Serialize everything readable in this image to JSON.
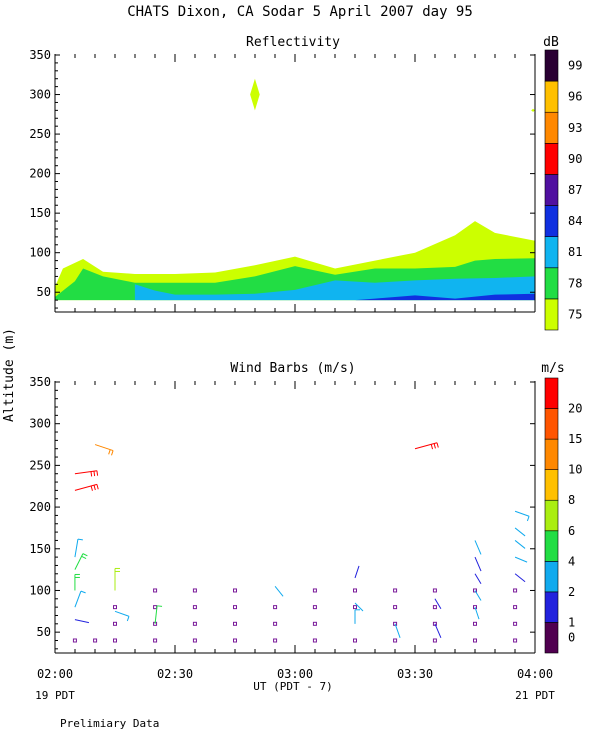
{
  "page": {
    "title": "CHATS Dixon, CA  Sodar    5 April 2007   day  95",
    "footer_note": "Prelimiary Data",
    "y_axis_label": "Altitude (m)",
    "x_axis_label": "UT  (PDT - 7)",
    "x_left_note": "19 PDT",
    "x_right_note": "21 PDT"
  },
  "chart_data": [
    {
      "type": "area",
      "title": "Reflectivity",
      "xlabel": "UT  (PDT - 7)",
      "ylabel": "Altitude (m)",
      "x_ticks": [
        "02:00",
        "02:30",
        "03:00",
        "03:30",
        "04:00"
      ],
      "x_tick_hours": [
        2.0,
        2.5,
        3.0,
        3.5,
        4.0
      ],
      "xlim_hours": [
        2.0,
        4.0
      ],
      "ylim": [
        25,
        350
      ],
      "y_ticks": [
        50,
        100,
        150,
        200,
        250,
        300,
        350
      ],
      "colorbar": {
        "unit": "dB",
        "labels": [
          "75",
          "78",
          "81",
          "84",
          "87",
          "90",
          "93",
          "96",
          "99"
        ],
        "colors": [
          "#ccff00",
          "#22dd44",
          "#10b4f0",
          "#1030e0",
          "#5010a0",
          "#ff0000",
          "#ff8800",
          "#ffc000",
          "#2a0033"
        ]
      },
      "layers": [
        {
          "level_db": 75,
          "color": "#ccff00",
          "x_hours": [
            2.0,
            2.033,
            2.117,
            2.2,
            2.333,
            2.5,
            2.667,
            2.833,
            3.0,
            3.167,
            3.333,
            3.5,
            3.667,
            3.75,
            3.833,
            4.0
          ],
          "top": [
            57,
            80,
            92,
            76,
            73,
            73,
            75,
            84,
            95,
            80,
            90,
            100,
            122,
            140,
            125,
            115
          ],
          "bottom": [
            40,
            40,
            40,
            40,
            40,
            40,
            40,
            40,
            40,
            40,
            40,
            40,
            40,
            40,
            40,
            40
          ]
        },
        {
          "level_db": 78,
          "color": "#22dd44",
          "x_hours": [
            2.0,
            2.083,
            2.117,
            2.2,
            2.333,
            2.5,
            2.667,
            2.833,
            3.0,
            3.167,
            3.333,
            3.5,
            3.667,
            3.75,
            3.833,
            4.0
          ],
          "top": [
            44,
            64,
            80,
            70,
            62,
            62,
            62,
            70,
            83,
            72,
            80,
            80,
            82,
            90,
            92,
            93
          ],
          "bottom": [
            40,
            40,
            40,
            40,
            40,
            40,
            40,
            40,
            40,
            40,
            40,
            40,
            40,
            40,
            40,
            40
          ]
        },
        {
          "level_db": 81,
          "color": "#10b4f0",
          "x_hours": [
            2.333,
            2.417,
            2.5,
            2.667,
            2.833,
            3.0,
            3.167,
            3.333,
            3.5,
            3.667,
            3.833,
            4.0
          ],
          "top": [
            60,
            52,
            47,
            47,
            48,
            53,
            65,
            62,
            65,
            67,
            68,
            70
          ],
          "bottom": [
            40,
            40,
            40,
            40,
            40,
            40,
            40,
            40,
            40,
            40,
            40,
            40
          ]
        },
        {
          "level_db": 84,
          "color": "#1030e0",
          "x_hours": [
            3.25,
            3.333,
            3.5,
            3.667,
            3.833,
            4.0
          ],
          "top": [
            40,
            42,
            46,
            42,
            47,
            48
          ],
          "bottom": [
            40,
            40,
            40,
            40,
            40,
            40
          ]
        }
      ],
      "isolated": [
        {
          "x_hour": 2.833,
          "y": 300,
          "half_width_hours": 0.02,
          "half_height": 20,
          "color": "#ccff00"
        },
        {
          "x_hour": 3.992,
          "y": 280,
          "half_width_hours": 0.008,
          "half_height": 2,
          "color": "#ccff00"
        }
      ]
    },
    {
      "type": "scatter",
      "title": "Wind Barbs (m/s)",
      "xlabel": "UT  (PDT - 7)",
      "ylabel": "Altitude (m)",
      "x_ticks": [
        "02:00",
        "02:30",
        "03:00",
        "03:30",
        "04:00"
      ],
      "x_tick_hours": [
        2.0,
        2.5,
        3.0,
        3.5,
        4.0
      ],
      "xlim_hours": [
        2.0,
        4.0
      ],
      "ylim": [
        25,
        350
      ],
      "y_ticks": [
        50,
        100,
        150,
        200,
        250,
        300,
        350
      ],
      "colorbar": {
        "unit": "m/s",
        "labels": [
          "0",
          "1",
          "2",
          "4",
          "6",
          "8",
          "10",
          "15",
          "20"
        ],
        "colors": [
          "#500050",
          "#2222dd",
          "#11aaee",
          "#22dd44",
          "#aaee11",
          "#ffc000",
          "#ff8800",
          "#ff5500",
          "#ff0000"
        ]
      },
      "calm_points": [
        {
          "x_hour": 2.25,
          "y": 80
        },
        {
          "x_hour": 2.25,
          "y": 60
        },
        {
          "x_hour": 2.25,
          "y": 40
        },
        {
          "x_hour": 2.417,
          "y": 100
        },
        {
          "x_hour": 2.417,
          "y": 80
        },
        {
          "x_hour": 2.417,
          "y": 60
        },
        {
          "x_hour": 2.417,
          "y": 40
        },
        {
          "x_hour": 2.583,
          "y": 100
        },
        {
          "x_hour": 2.583,
          "y": 80
        },
        {
          "x_hour": 2.583,
          "y": 60
        },
        {
          "x_hour": 2.583,
          "y": 40
        },
        {
          "x_hour": 2.75,
          "y": 100
        },
        {
          "x_hour": 2.75,
          "y": 80
        },
        {
          "x_hour": 2.75,
          "y": 60
        },
        {
          "x_hour": 2.75,
          "y": 40
        },
        {
          "x_hour": 2.917,
          "y": 80
        },
        {
          "x_hour": 2.917,
          "y": 60
        },
        {
          "x_hour": 2.917,
          "y": 40
        },
        {
          "x_hour": 3.083,
          "y": 100
        },
        {
          "x_hour": 3.083,
          "y": 80
        },
        {
          "x_hour": 3.083,
          "y": 60
        },
        {
          "x_hour": 3.083,
          "y": 40
        },
        {
          "x_hour": 3.25,
          "y": 100
        },
        {
          "x_hour": 3.25,
          "y": 80
        },
        {
          "x_hour": 3.25,
          "y": 40
        },
        {
          "x_hour": 3.417,
          "y": 100
        },
        {
          "x_hour": 3.417,
          "y": 80
        },
        {
          "x_hour": 3.417,
          "y": 60
        },
        {
          "x_hour": 3.417,
          "y": 40
        },
        {
          "x_hour": 3.583,
          "y": 100
        },
        {
          "x_hour": 3.583,
          "y": 80
        },
        {
          "x_hour": 3.583,
          "y": 60
        },
        {
          "x_hour": 3.75,
          "y": 100
        },
        {
          "x_hour": 3.75,
          "y": 80
        },
        {
          "x_hour": 3.75,
          "y": 60
        },
        {
          "x_hour": 3.75,
          "y": 40
        },
        {
          "x_hour": 3.917,
          "y": 100
        },
        {
          "x_hour": 3.917,
          "y": 80
        },
        {
          "x_hour": 3.917,
          "y": 60
        },
        {
          "x_hour": 3.917,
          "y": 40
        },
        {
          "x_hour": 3.583,
          "y": 40
        },
        {
          "x_hour": 2.083,
          "y": 40
        },
        {
          "x_hour": 2.167,
          "y": 40
        }
      ],
      "barbs": [
        {
          "x_hour": 2.083,
          "y": 140,
          "dx": 3,
          "dy": 18,
          "speed": 3,
          "color": "#11aaee"
        },
        {
          "x_hour": 2.083,
          "y": 125,
          "dx": 8,
          "dy": 16,
          "speed": 5,
          "color": "#22dd44"
        },
        {
          "x_hour": 2.083,
          "y": 100,
          "dx": 0,
          "dy": 16,
          "speed": 5,
          "color": "#22dd44"
        },
        {
          "x_hour": 2.083,
          "y": 80,
          "dx": 6,
          "dy": 16,
          "speed": 3,
          "color": "#11aaee"
        },
        {
          "x_hour": 2.083,
          "y": 65,
          "dx": 14,
          "dy": -3,
          "speed": 1,
          "color": "#2222dd"
        },
        {
          "x_hour": 2.083,
          "y": 240,
          "dx": 22,
          "dy": 3,
          "speed": 20,
          "color": "#ff0000"
        },
        {
          "x_hour": 2.083,
          "y": 220,
          "dx": 22,
          "dy": 6,
          "speed": 20,
          "color": "#ff0000"
        },
        {
          "x_hour": 2.167,
          "y": 275,
          "dx": 18,
          "dy": -6,
          "speed": 9,
          "color": "#ff8800"
        },
        {
          "x_hour": 2.25,
          "y": 100,
          "dx": 0,
          "dy": 22,
          "speed": 6,
          "color": "#aaee11"
        },
        {
          "x_hour": 2.25,
          "y": 75,
          "dx": 14,
          "dy": -5,
          "speed": 3,
          "color": "#11aaee"
        },
        {
          "x_hour": 2.417,
          "y": 60,
          "dx": 2,
          "dy": 18,
          "speed": 4,
          "color": "#22dd44"
        },
        {
          "x_hour": 2.917,
          "y": 105,
          "dx": 8,
          "dy": -10,
          "speed": 2,
          "color": "#11aaee"
        },
        {
          "x_hour": 3.25,
          "y": 115,
          "dx": 4,
          "dy": 12,
          "speed": 1,
          "color": "#2222dd"
        },
        {
          "x_hour": 3.25,
          "y": 85,
          "dx": 8,
          "dy": -8,
          "speed": 2,
          "color": "#11aaee"
        },
        {
          "x_hour": 3.25,
          "y": 60,
          "dx": 0,
          "dy": 14,
          "speed": 3,
          "color": "#11aaee"
        },
        {
          "x_hour": 3.417,
          "y": 60,
          "dx": 5,
          "dy": -14,
          "speed": 2,
          "color": "#11aaee"
        },
        {
          "x_hour": 3.5,
          "y": 270,
          "dx": 22,
          "dy": 6,
          "speed": 20,
          "color": "#ff0000"
        },
        {
          "x_hour": 3.583,
          "y": 90,
          "dx": 6,
          "dy": -10,
          "speed": 1,
          "color": "#2222dd"
        },
        {
          "x_hour": 3.583,
          "y": 60,
          "dx": 6,
          "dy": -14,
          "speed": 1,
          "color": "#2222dd"
        },
        {
          "x_hour": 3.75,
          "y": 160,
          "dx": 6,
          "dy": -14,
          "speed": 2,
          "color": "#11aaee"
        },
        {
          "x_hour": 3.75,
          "y": 140,
          "dx": 6,
          "dy": -14,
          "speed": 1,
          "color": "#2222dd"
        },
        {
          "x_hour": 3.75,
          "y": 120,
          "dx": 6,
          "dy": -10,
          "speed": 1,
          "color": "#2222dd"
        },
        {
          "x_hour": 3.75,
          "y": 100,
          "dx": 6,
          "dy": -10,
          "speed": 2,
          "color": "#11aaee"
        },
        {
          "x_hour": 3.75,
          "y": 80,
          "dx": 4,
          "dy": -12,
          "speed": 2,
          "color": "#11aaee"
        },
        {
          "x_hour": 3.917,
          "y": 195,
          "dx": 14,
          "dy": -5,
          "speed": 3,
          "color": "#11aaee"
        },
        {
          "x_hour": 3.917,
          "y": 175,
          "dx": 10,
          "dy": -8,
          "speed": 2,
          "color": "#11aaee"
        },
        {
          "x_hour": 3.917,
          "y": 160,
          "dx": 10,
          "dy": -8,
          "speed": 2,
          "color": "#11aaee"
        },
        {
          "x_hour": 3.917,
          "y": 140,
          "dx": 12,
          "dy": -5,
          "speed": 2,
          "color": "#11aaee"
        },
        {
          "x_hour": 3.917,
          "y": 120,
          "dx": 10,
          "dy": -8,
          "speed": 1,
          "color": "#2222dd"
        }
      ]
    }
  ]
}
